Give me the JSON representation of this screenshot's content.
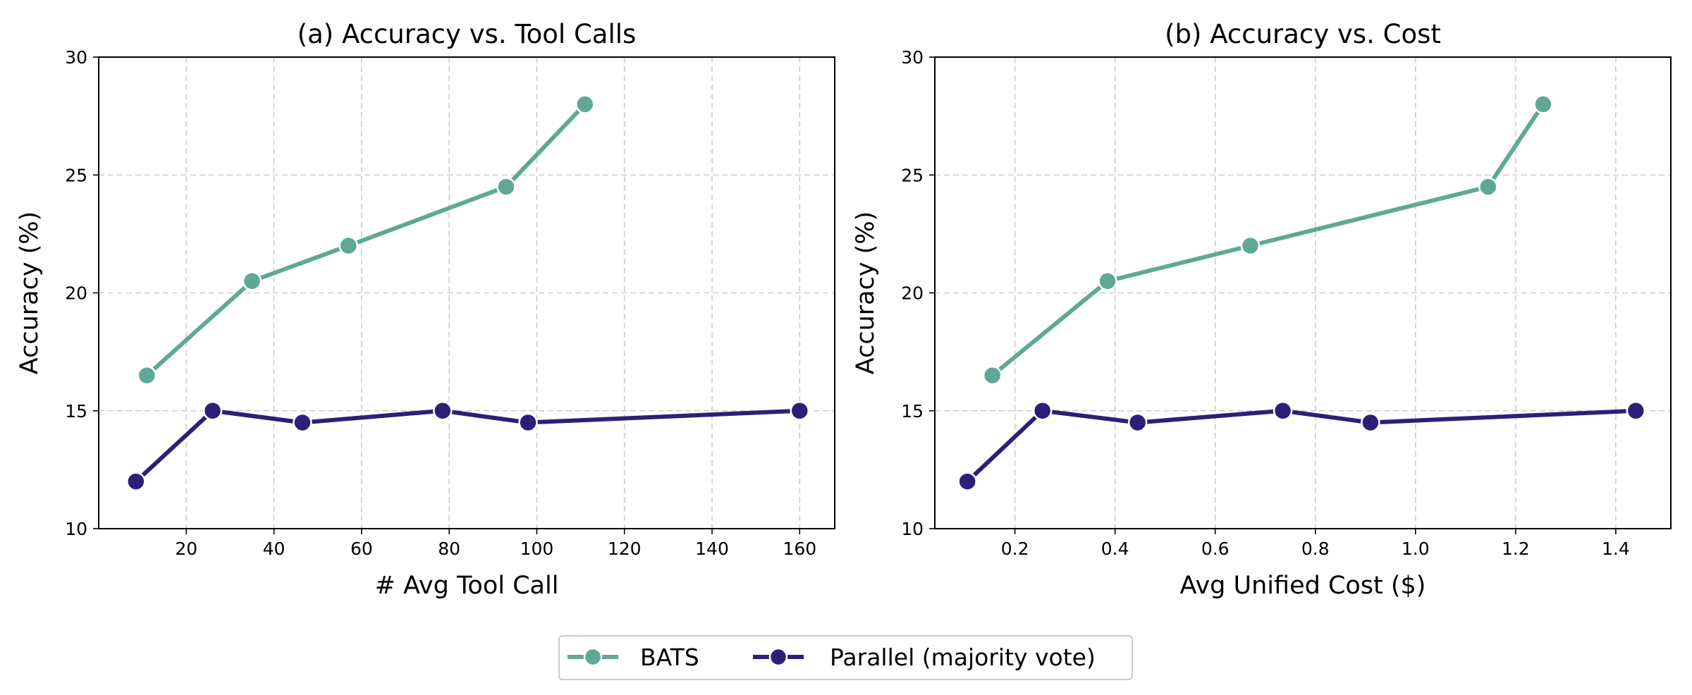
{
  "chart_data": [
    {
      "type": "line",
      "title": "(a) Accuracy vs. Tool Calls",
      "xlabel": "# Avg Tool Call",
      "ylabel": "Accuracy (%)",
      "xlim": [
        0,
        168
      ],
      "ylim": [
        10,
        30
      ],
      "xticks": [
        20,
        40,
        60,
        80,
        100,
        120,
        140,
        160
      ],
      "yticks": [
        10,
        15,
        20,
        25,
        30
      ],
      "grid": true,
      "series": [
        {
          "name": "BATS",
          "color": "#5fa896",
          "x": [
            11,
            35,
            57,
            93,
            111
          ],
          "y": [
            16.5,
            20.5,
            22,
            24.5,
            28
          ]
        },
        {
          "name": "Parallel (majority vote)",
          "color": "#2d1f78",
          "x": [
            8.5,
            26,
            46.5,
            78.5,
            98,
            160
          ],
          "y": [
            12,
            15,
            14.5,
            15,
            14.5,
            15
          ]
        }
      ]
    },
    {
      "type": "line",
      "title": "(b) Accuracy vs. Cost",
      "xlabel": "Avg Unified Cost ($)",
      "ylabel": "Accuracy (%)",
      "xlim": [
        0.04,
        1.51
      ],
      "ylim": [
        10,
        30
      ],
      "xticks": [
        0.2,
        0.4,
        0.6,
        0.8,
        1.0,
        1.2,
        1.4
      ],
      "xtick_labels": [
        "0.2",
        "0.4",
        "0.6",
        "0.8",
        "1.0",
        "1.2",
        "1.4"
      ],
      "yticks": [
        10,
        15,
        20,
        25,
        30
      ],
      "grid": true,
      "series": [
        {
          "name": "BATS",
          "color": "#5fa896",
          "x": [
            0.155,
            0.385,
            0.67,
            1.145,
            1.255
          ],
          "y": [
            16.5,
            20.5,
            22,
            24.5,
            28
          ]
        },
        {
          "name": "Parallel (majority vote)",
          "color": "#2d1f78",
          "x": [
            0.105,
            0.255,
            0.445,
            0.735,
            0.91,
            1.44
          ],
          "y": [
            12,
            15,
            14.5,
            15,
            14.5,
            15
          ]
        }
      ]
    }
  ],
  "legend": {
    "placement": "bottom-center",
    "items": [
      {
        "label": "BATS",
        "color": "#5fa896"
      },
      {
        "label": "Parallel (majority vote)",
        "color": "#2d1f78"
      }
    ]
  }
}
